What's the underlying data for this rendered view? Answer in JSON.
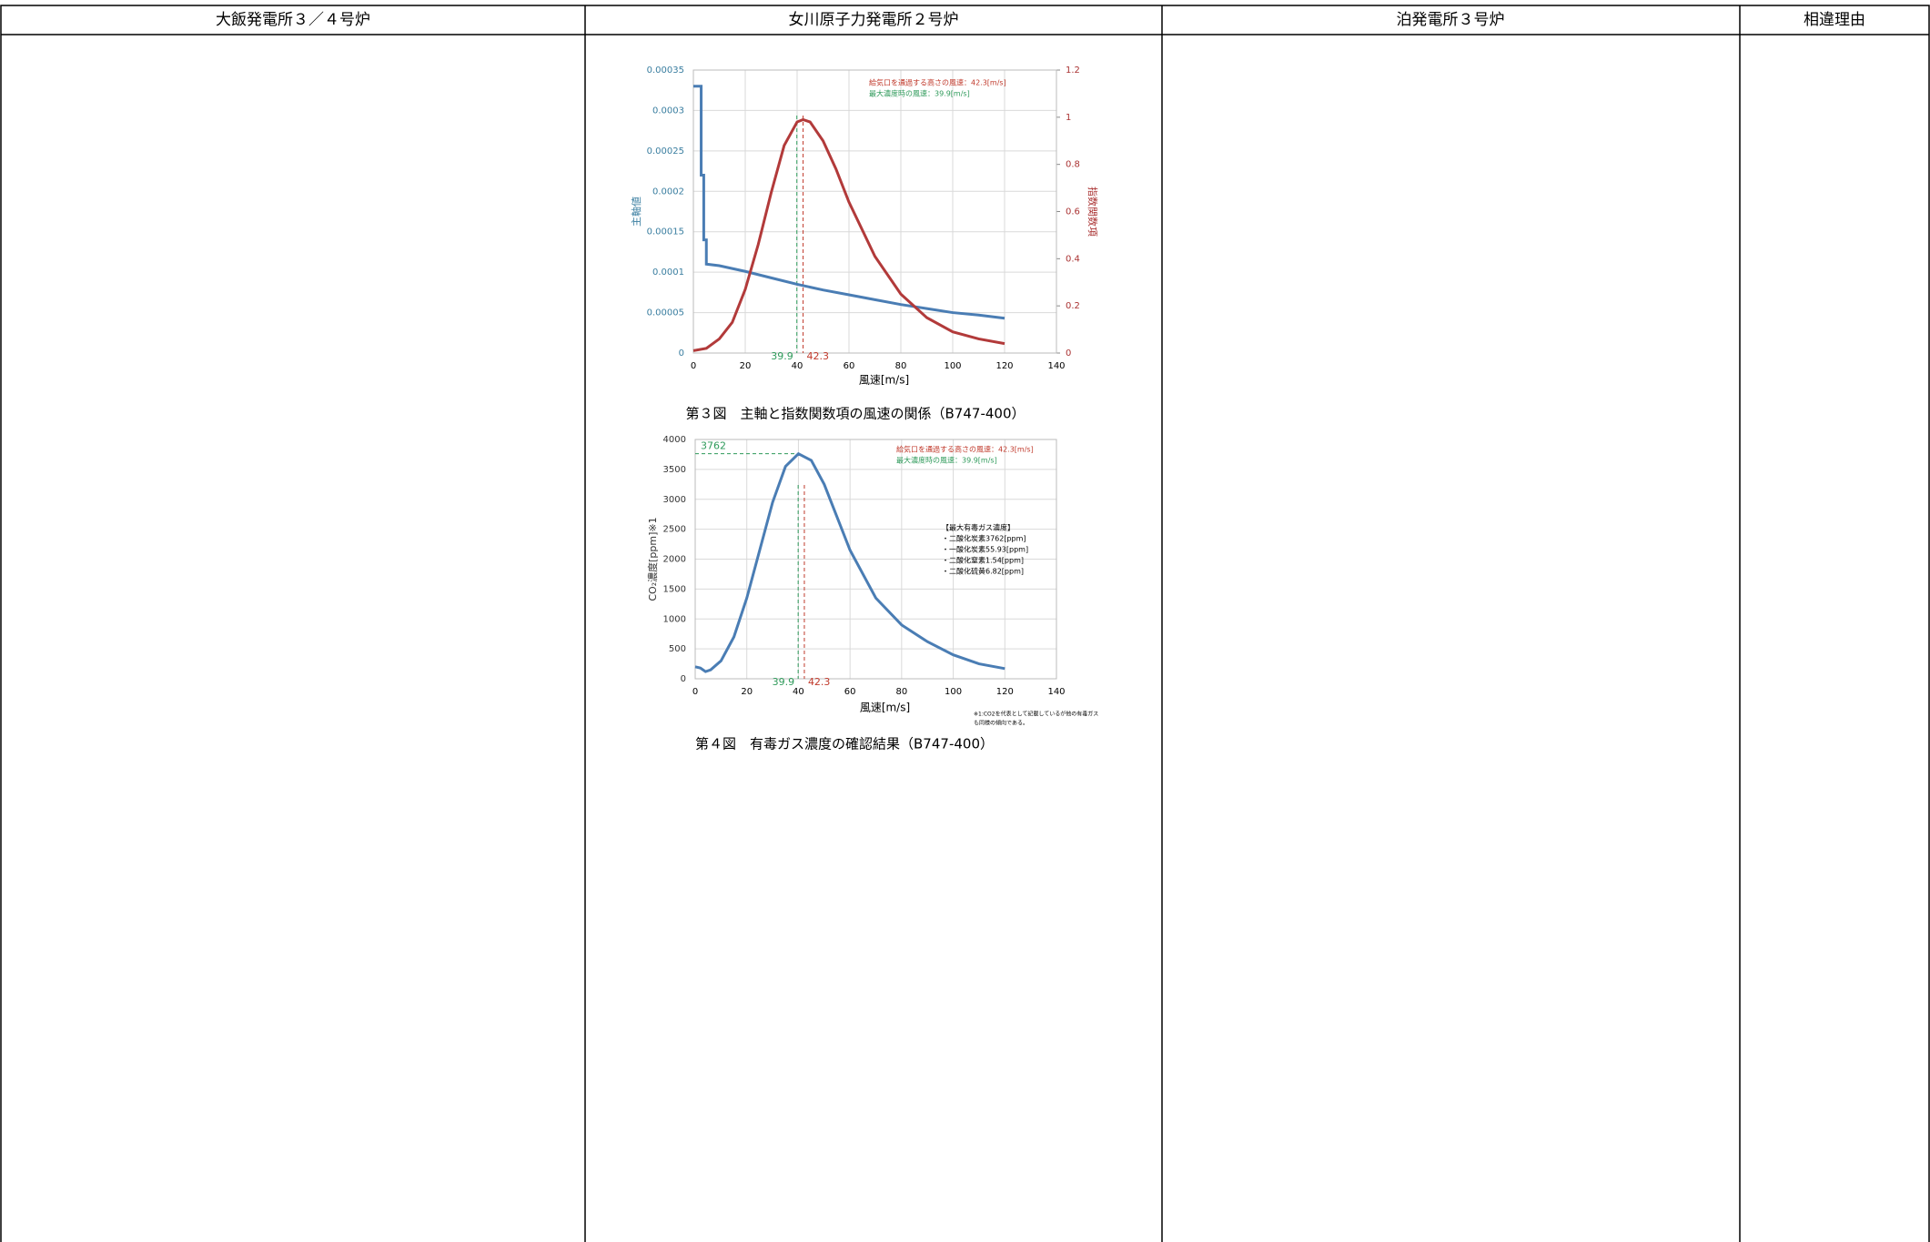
{
  "header": {
    "columns": [
      "大飯発電所３／４号炉",
      "女川原子力発電所２号炉",
      "泊発電所３号炉",
      "相違理由"
    ]
  },
  "chart_data": [
    {
      "type": "line",
      "caption": "第３図　主軸と指数関数項の風速の関係（B747-400）",
      "xlabel": "風速[m/s]",
      "ylabel": "主軸値",
      "y2label": "指数関数項",
      "xlim": [
        0,
        140
      ],
      "xticks": [
        0,
        20,
        40,
        60,
        80,
        100,
        120,
        140
      ],
      "ylim": [
        0,
        0.00035
      ],
      "yticks": [
        0,
        5e-05,
        0.0001,
        0.00015,
        0.0002,
        0.00025,
        0.0003,
        0.00035
      ],
      "y2lim": [
        0,
        1.2
      ],
      "y2ticks": [
        0,
        0.2,
        0.4,
        0.6,
        0.8,
        1,
        1.2
      ],
      "grid": true,
      "annotations": [
        {
          "text": "給気口を通過する高さの風速：42.3[m/s]",
          "color": "#c0392b"
        },
        {
          "text": "最大濃度時の風速：39.9[m/s]",
          "color": "#2e9a5a"
        }
      ],
      "vlines": [
        39.9,
        42.3
      ],
      "vline_colors": [
        "#2e9a5a",
        "#c0392b"
      ],
      "series": [
        {
          "name": "主軸値",
          "color": "#4a7db4",
          "axis": "y",
          "x": [
            0,
            3,
            3,
            4,
            4,
            5,
            5,
            10,
            20,
            30,
            40,
            50,
            60,
            70,
            80,
            90,
            100,
            110,
            120
          ],
          "values": [
            0.00033,
            0.00033,
            0.00022,
            0.00022,
            0.00014,
            0.00014,
            0.00011,
            0.000108,
            0.000101,
            9.3e-05,
            8.5e-05,
            7.8e-05,
            7.2e-05,
            6.6e-05,
            6e-05,
            5.5e-05,
            5e-05,
            4.7e-05,
            4.3e-05
          ]
        },
        {
          "name": "指数関数項",
          "color": "#b23a3a",
          "axis": "y2",
          "x": [
            0,
            5,
            10,
            15,
            20,
            25,
            30,
            35,
            40,
            42.3,
            45,
            50,
            55,
            60,
            70,
            80,
            90,
            100,
            110,
            120
          ],
          "values": [
            0.01,
            0.02,
            0.06,
            0.13,
            0.27,
            0.46,
            0.68,
            0.88,
            0.98,
            0.99,
            0.98,
            0.9,
            0.78,
            0.64,
            0.41,
            0.25,
            0.15,
            0.09,
            0.06,
            0.04
          ]
        }
      ]
    },
    {
      "type": "line",
      "caption": "第４図　有毒ガス濃度の確認結果（B747-400）",
      "xlabel": "風速[m/s]",
      "ylabel": "CO₂濃度[ppm]※1",
      "xlim": [
        0,
        140
      ],
      "xticks": [
        0,
        20,
        40,
        60,
        80,
        100,
        120,
        140
      ],
      "ylim": [
        0,
        4000
      ],
      "yticks": [
        0,
        500,
        1000,
        1500,
        2000,
        2500,
        3000,
        3500,
        4000
      ],
      "grid": true,
      "annotations": [
        {
          "text": "給気口を通過する高さの風速：42.3[m/s]",
          "color": "#c0392b"
        },
        {
          "text": "最大濃度時の風速：39.9[m/s]",
          "color": "#2e9a5a"
        }
      ],
      "box_lines": [
        "【最大有毒ガス濃度】",
        "・二酸化炭素3762[ppm]",
        "・一酸化炭素55.93[ppm]",
        "・二酸化窒素1.54[ppm]",
        "・二酸化硫黄6.82[ppm]"
      ],
      "note": [
        "※1:CO2を代表として記載しているが他の有毒ガス",
        "も同様の傾向である。"
      ],
      "vlines": [
        39.9,
        42.3
      ],
      "vline_colors": [
        "#2e9a5a",
        "#c0392b"
      ],
      "hlines": [
        3762
      ],
      "hline_colors": [
        "#2e9a5a"
      ],
      "series": [
        {
          "name": "CO₂濃度",
          "color": "#4a7db4",
          "axis": "y",
          "x": [
            0,
            2,
            4,
            6,
            10,
            15,
            20,
            25,
            30,
            35,
            40,
            45,
            50,
            55,
            60,
            70,
            80,
            90,
            100,
            110,
            120
          ],
          "values": [
            200,
            180,
            120,
            150,
            300,
            700,
            1350,
            2150,
            2950,
            3550,
            3762,
            3650,
            3250,
            2700,
            2150,
            1350,
            900,
            620,
            400,
            250,
            170
          ]
        }
      ]
    }
  ]
}
